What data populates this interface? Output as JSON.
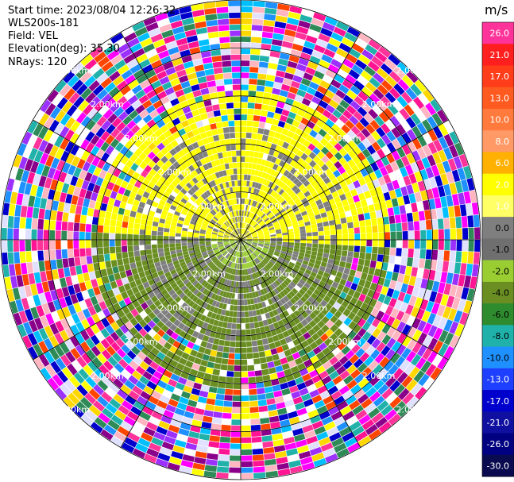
{
  "info": {
    "start_time": "Start time: 2023/08/04 12:26:32",
    "site": "WLS200s-181",
    "field": "Field: VEL",
    "elevation": "Elevation(deg): 35.30",
    "nrays": "NRays: 120"
  },
  "chart_data": {
    "type": "heatmap",
    "projection": "polar-ppi",
    "field": "VEL",
    "units": "m/s",
    "n_rays": 120,
    "range_rings_km": [
      1.0,
      2.0,
      3.0,
      4.0,
      5.0
    ],
    "ring_label": "2.00km",
    "spokes_deg": [
      0,
      30,
      60,
      90,
      120,
      150,
      180,
      210,
      240,
      270,
      300,
      330
    ],
    "colorbar": {
      "title": "m/s",
      "ticks": [
        "26.0",
        "21.0",
        "17.0",
        "13.0",
        "10.0",
        "8.0",
        "6.0",
        "2.0",
        "1.0",
        "0.0",
        "-1.0",
        "-2.0",
        "-4.0",
        "-6.0",
        "-8.0",
        "-10.0",
        "-13.0",
        "-17.0",
        "-21.0",
        "-26.0",
        "-30.0"
      ],
      "colors": [
        "#ff3399",
        "#ff1f1f",
        "#ff3d1a",
        "#ff5a1f",
        "#ff7a3c",
        "#ff9a66",
        "#ffb000",
        "#ffff00",
        "#ffff66",
        "#7f7f7f",
        "#6f6f6f",
        "#9acd32",
        "#6b8e23",
        "#2e8b2e",
        "#20b2aa",
        "#1e90ff",
        "#1f3fff",
        "#0000cd",
        "#1010a0",
        "#000080",
        "#0a0a50"
      ]
    },
    "zones": [
      {
        "from_km": 0.0,
        "to_km": 0.6,
        "north_half": "#ffff00",
        "south_half": "#9acd32",
        "gaps": "#7f7f7f"
      },
      {
        "from_km": 0.6,
        "to_km": 2.3,
        "north_half": "#ffff00",
        "south_half": "#6b8e23",
        "gaps": "#7f7f7f"
      },
      {
        "from_km": 2.3,
        "to_km": 3.1,
        "north_half": "#ffff00",
        "south_half": "#6b8e23",
        "gaps": "noise"
      },
      {
        "from_km": 3.1,
        "to_km": 5.0,
        "north_half": "noise",
        "south_half": "noise",
        "gaps": "noise"
      }
    ],
    "noise_palette": [
      "#ff3399",
      "#ff1493",
      "#ff00ff",
      "#9b30ff",
      "#0000cd",
      "#1e90ff",
      "#00bfff",
      "#20b2aa",
      "#2e8b57",
      "#ffff00",
      "#ff4500",
      "#ffd700",
      "#ffb6c1",
      "#e0e0ff",
      "#ffffff",
      "#8b008b"
    ]
  }
}
